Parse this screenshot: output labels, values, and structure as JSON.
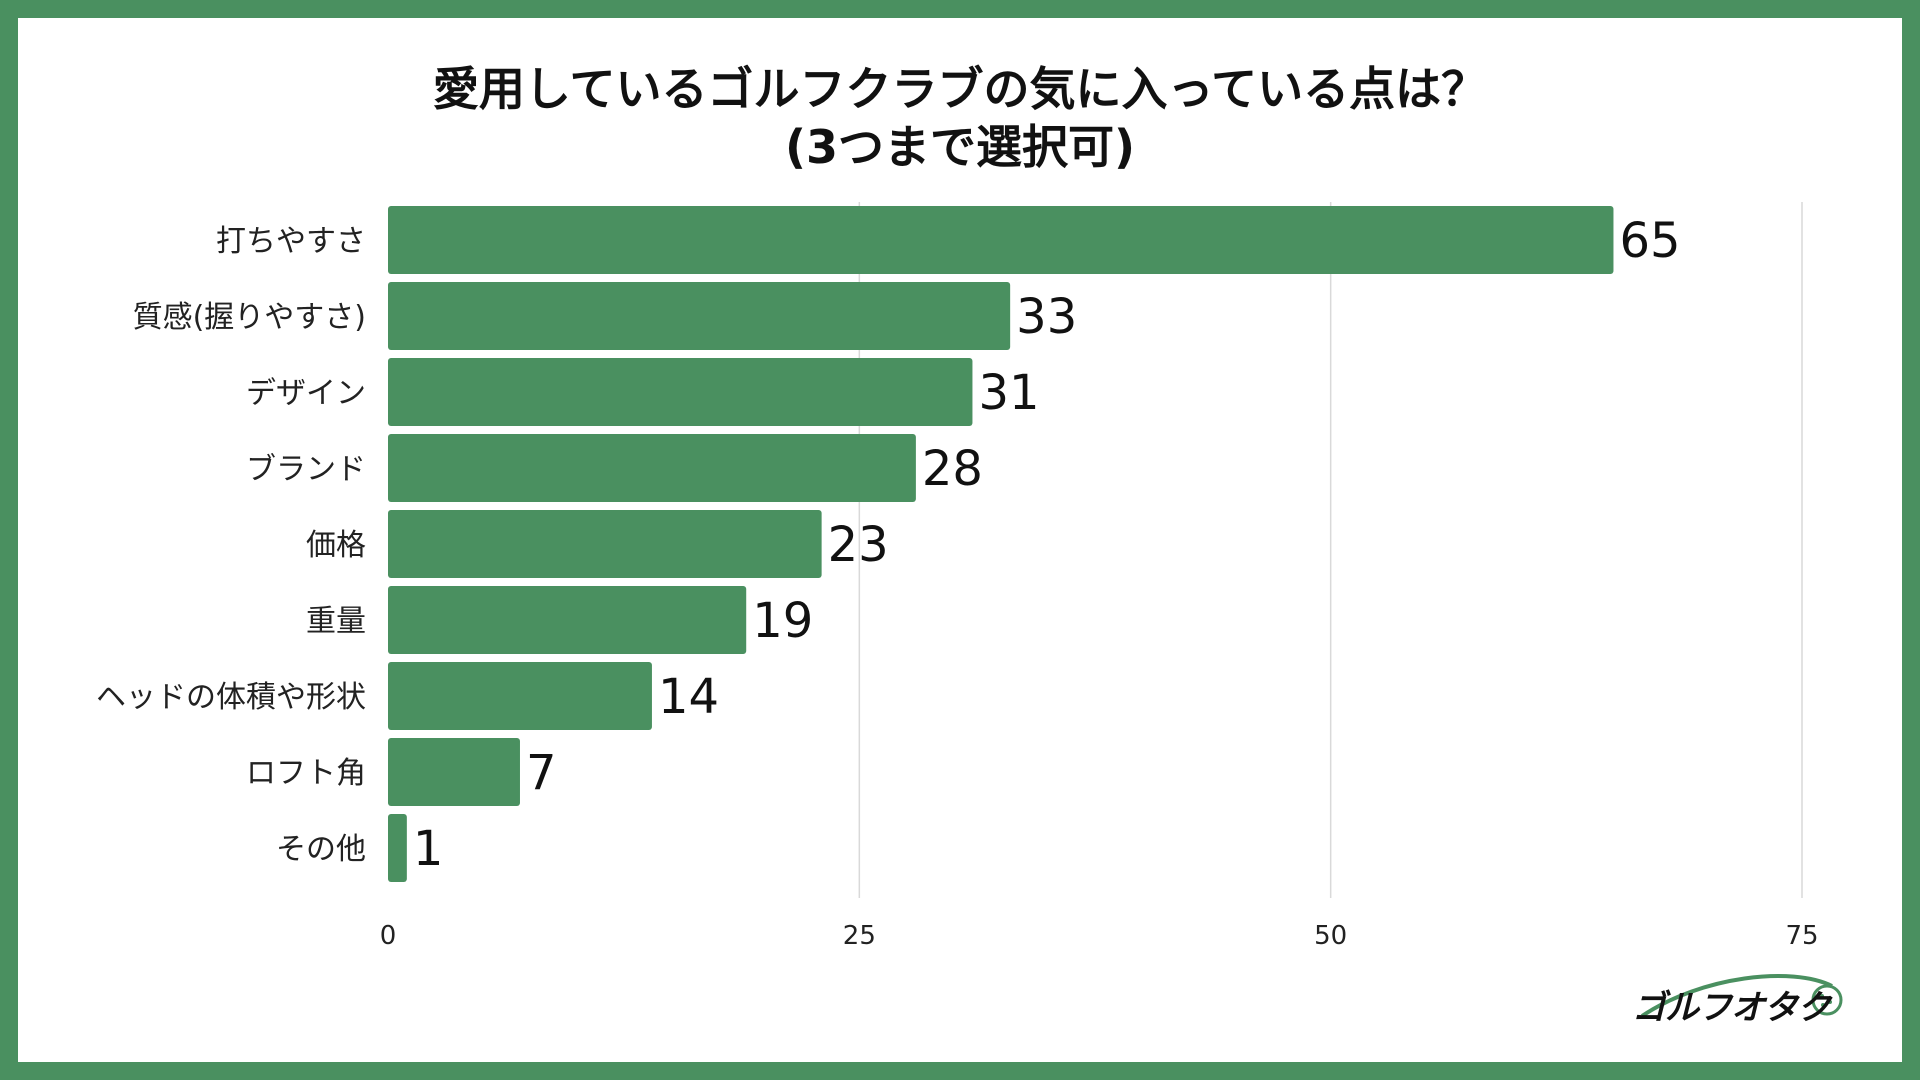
{
  "colors": {
    "frame": "#4a9060",
    "bar": "#4a9060",
    "grid": "#d9d9d9",
    "text": "#111111"
  },
  "chart_data": {
    "type": "bar",
    "orientation": "horizontal",
    "title_line1": "愛用しているゴルフクラブの気に入っている点は？",
    "title_line2": "(3つまで選択可)",
    "categories": [
      "打ちやすさ",
      "質感(握りやすさ)",
      "デザイン",
      "ブランド",
      "価格",
      "重量",
      "ヘッドの体積や形状",
      "ロフト角",
      "その他"
    ],
    "values": [
      65,
      33,
      31,
      28,
      23,
      19,
      14,
      7,
      1
    ],
    "xlim": [
      0,
      75
    ],
    "xticks": [
      0,
      25,
      50,
      75
    ],
    "grid": true,
    "legend": "none"
  },
  "logo": {
    "text": "ゴルフオタク",
    "icon": "golf-ball-swoosh-icon"
  }
}
